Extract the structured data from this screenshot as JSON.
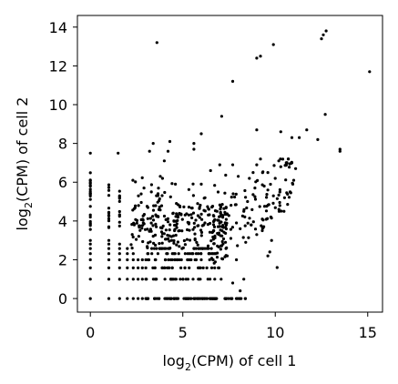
{
  "chart_data": {
    "type": "scatter",
    "title": "",
    "xlabel": {
      "prefix": "log",
      "subscript": "2",
      "suffix": "(CPM) of cell 1"
    },
    "ylabel": {
      "prefix": "log",
      "subscript": "2",
      "suffix": "(CPM) of cell 2"
    },
    "xlim": [
      -0.7,
      15.8
    ],
    "ylim": [
      -0.7,
      14.6
    ],
    "xticks": [
      0,
      5,
      10,
      15
    ],
    "yticks": [
      0,
      2,
      4,
      6,
      8,
      10,
      12,
      14
    ],
    "grid": false,
    "legend": "none",
    "marker_color": "#000000",
    "x_levels": [
      0,
      1,
      1.58,
      2,
      2.32,
      2.58,
      2.81,
      3
    ],
    "series": [
      {
        "points": [
          [
            3.6,
            13.2
          ],
          [
            9.9,
            13.1
          ],
          [
            12.5,
            13.4
          ],
          [
            12.6,
            13.6
          ],
          [
            12.75,
            13.8
          ],
          [
            9.0,
            12.4
          ],
          [
            9.2,
            12.5
          ],
          [
            15.1,
            11.7
          ],
          [
            7.7,
            11.2
          ],
          [
            7.1,
            9.4
          ],
          [
            12.7,
            9.5
          ],
          [
            10.3,
            8.6
          ],
          [
            10.9,
            8.3
          ],
          [
            11.3,
            8.3
          ],
          [
            11.7,
            8.7
          ],
          [
            12.3,
            8.2
          ],
          [
            13.5,
            7.6
          ],
          [
            13.5,
            7.7
          ],
          [
            9.0,
            8.7
          ],
          [
            3.4,
            8.0
          ],
          [
            4.3,
            8.1
          ],
          [
            5.6,
            8.0
          ],
          [
            6.0,
            8.5
          ],
          [
            5.6,
            7.7
          ],
          [
            4.2,
            7.6
          ],
          [
            3.2,
            7.6
          ],
          [
            4.0,
            7.1
          ],
          [
            7.0,
            6.9
          ],
          [
            7.7,
            6.9
          ],
          [
            8.8,
            6.5
          ],
          [
            9.0,
            6.9
          ],
          [
            9.2,
            7.2
          ],
          [
            9.6,
            6.5
          ],
          [
            10.0,
            6.2
          ],
          [
            10.3,
            6.8
          ],
          [
            10.6,
            6.9
          ],
          [
            10.9,
            7.0
          ],
          [
            11.1,
            6.7
          ],
          [
            9.6,
            5.6
          ],
          [
            8.0,
            6.3
          ],
          [
            8.5,
            5.0
          ],
          [
            8.3,
            4.5
          ],
          [
            9.0,
            3.3
          ],
          [
            9.3,
            3.5
          ],
          [
            9.8,
            3.0
          ],
          [
            10.1,
            1.6
          ],
          [
            9.6,
            2.2
          ],
          [
            9.7,
            2.4
          ],
          [
            10.2,
            4.6
          ],
          [
            10.5,
            5.2
          ],
          [
            10.8,
            5.5
          ],
          [
            11.0,
            6.1
          ],
          [
            8.9,
            5.7
          ],
          [
            8.6,
            6.2
          ],
          [
            9.4,
            5.8
          ],
          [
            9.9,
            5.3
          ],
          [
            7.9,
            3.9
          ],
          [
            8.1,
            3.6
          ],
          [
            8.4,
            2.9
          ],
          [
            7.6,
            3.1
          ],
          [
            7.4,
            2.2
          ],
          [
            7.9,
            2.0
          ],
          [
            8.3,
            1.0
          ],
          [
            7.7,
            0.8
          ],
          [
            8.1,
            0.4
          ],
          [
            1.5,
            7.5
          ],
          [
            0.0,
            7.5
          ],
          [
            9.3,
            4.1
          ],
          [
            8.7,
            3.8
          ],
          [
            6.5,
            6.6
          ],
          [
            6.2,
            5.2
          ],
          [
            5.8,
            4.9
          ],
          [
            6.0,
            5.9
          ],
          [
            4.6,
            5.9
          ],
          [
            3.9,
            6.2
          ],
          [
            3.3,
            5.5
          ],
          [
            2.9,
            5.7
          ],
          [
            2.3,
            6.1
          ],
          [
            2.6,
            5.3
          ]
        ]
      }
    ]
  }
}
